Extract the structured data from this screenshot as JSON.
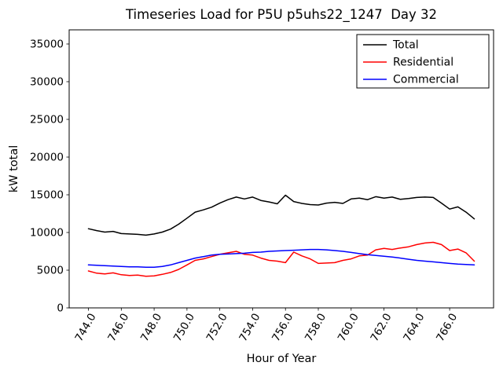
{
  "chart_data": {
    "type": "line",
    "title": "Timeseries Load for P5U p5uhs22_1247  Day 32",
    "xlabel": "Hour of Year",
    "ylabel": "kW total",
    "xlim": [
      742.825,
      768.675
    ],
    "ylim": [
      0,
      36875
    ],
    "grid": false,
    "legend_position": "upper right",
    "xticks": [
      744,
      746,
      748,
      750,
      752,
      754,
      756,
      758,
      760,
      762,
      764,
      766
    ],
    "xtick_labels": [
      "744.0",
      "746.0",
      "748.0",
      "750.0",
      "752.0",
      "754.0",
      "756.0",
      "758.0",
      "760.0",
      "762.0",
      "764.0",
      "766.0"
    ],
    "yticks": [
      0,
      5000,
      10000,
      15000,
      20000,
      25000,
      30000,
      35000
    ],
    "x": [
      744.0,
      744.5,
      745.0,
      745.5,
      746.0,
      746.5,
      747.0,
      747.5,
      748.0,
      748.5,
      749.0,
      749.5,
      750.0,
      750.5,
      751.0,
      751.5,
      752.0,
      752.5,
      753.0,
      753.5,
      754.0,
      754.5,
      755.0,
      755.5,
      756.0,
      756.5,
      757.0,
      757.5,
      758.0,
      758.5,
      759.0,
      759.5,
      760.0,
      760.5,
      761.0,
      761.5,
      762.0,
      762.5,
      763.0,
      763.5,
      764.0,
      764.5,
      765.0,
      765.5,
      766.0,
      766.5,
      767.0,
      767.5
    ],
    "series": [
      {
        "name": "Total",
        "color": "#000000",
        "values": [
          10500,
          10250,
          10050,
          10150,
          9850,
          9800,
          9750,
          9650,
          9800,
          10050,
          10450,
          11100,
          11900,
          12700,
          13000,
          13350,
          13900,
          14350,
          14700,
          14450,
          14700,
          14250,
          14050,
          13800,
          14950,
          14100,
          13850,
          13700,
          13650,
          13900,
          14000,
          13850,
          14450,
          14550,
          14350,
          14750,
          14550,
          14700,
          14400,
          14500,
          14650,
          14700,
          14650,
          13900,
          13100,
          13400,
          12700,
          11800
        ]
      },
      {
        "name": "Residential",
        "color": "#ff0000",
        "values": [
          4900,
          4600,
          4500,
          4650,
          4400,
          4300,
          4350,
          4200,
          4250,
          4450,
          4700,
          5100,
          5700,
          6300,
          6500,
          6800,
          7100,
          7300,
          7500,
          7100,
          7000,
          6600,
          6300,
          6200,
          6000,
          7400,
          6900,
          6500,
          5900,
          5950,
          6000,
          6300,
          6500,
          6900,
          7000,
          7700,
          7900,
          7750,
          7950,
          8100,
          8400,
          8600,
          8700,
          8400,
          7600,
          7800,
          7300,
          6200
        ]
      },
      {
        "name": "Commercial",
        "color": "#0000ff",
        "values": [
          5700,
          5650,
          5600,
          5550,
          5500,
          5450,
          5450,
          5400,
          5400,
          5500,
          5700,
          6000,
          6300,
          6600,
          6800,
          7000,
          7100,
          7150,
          7200,
          7250,
          7350,
          7400,
          7500,
          7550,
          7600,
          7650,
          7700,
          7750,
          7750,
          7700,
          7600,
          7500,
          7350,
          7200,
          7050,
          6950,
          6850,
          6750,
          6600,
          6450,
          6300,
          6200,
          6100,
          6000,
          5900,
          5800,
          5750,
          5700
        ]
      }
    ]
  }
}
